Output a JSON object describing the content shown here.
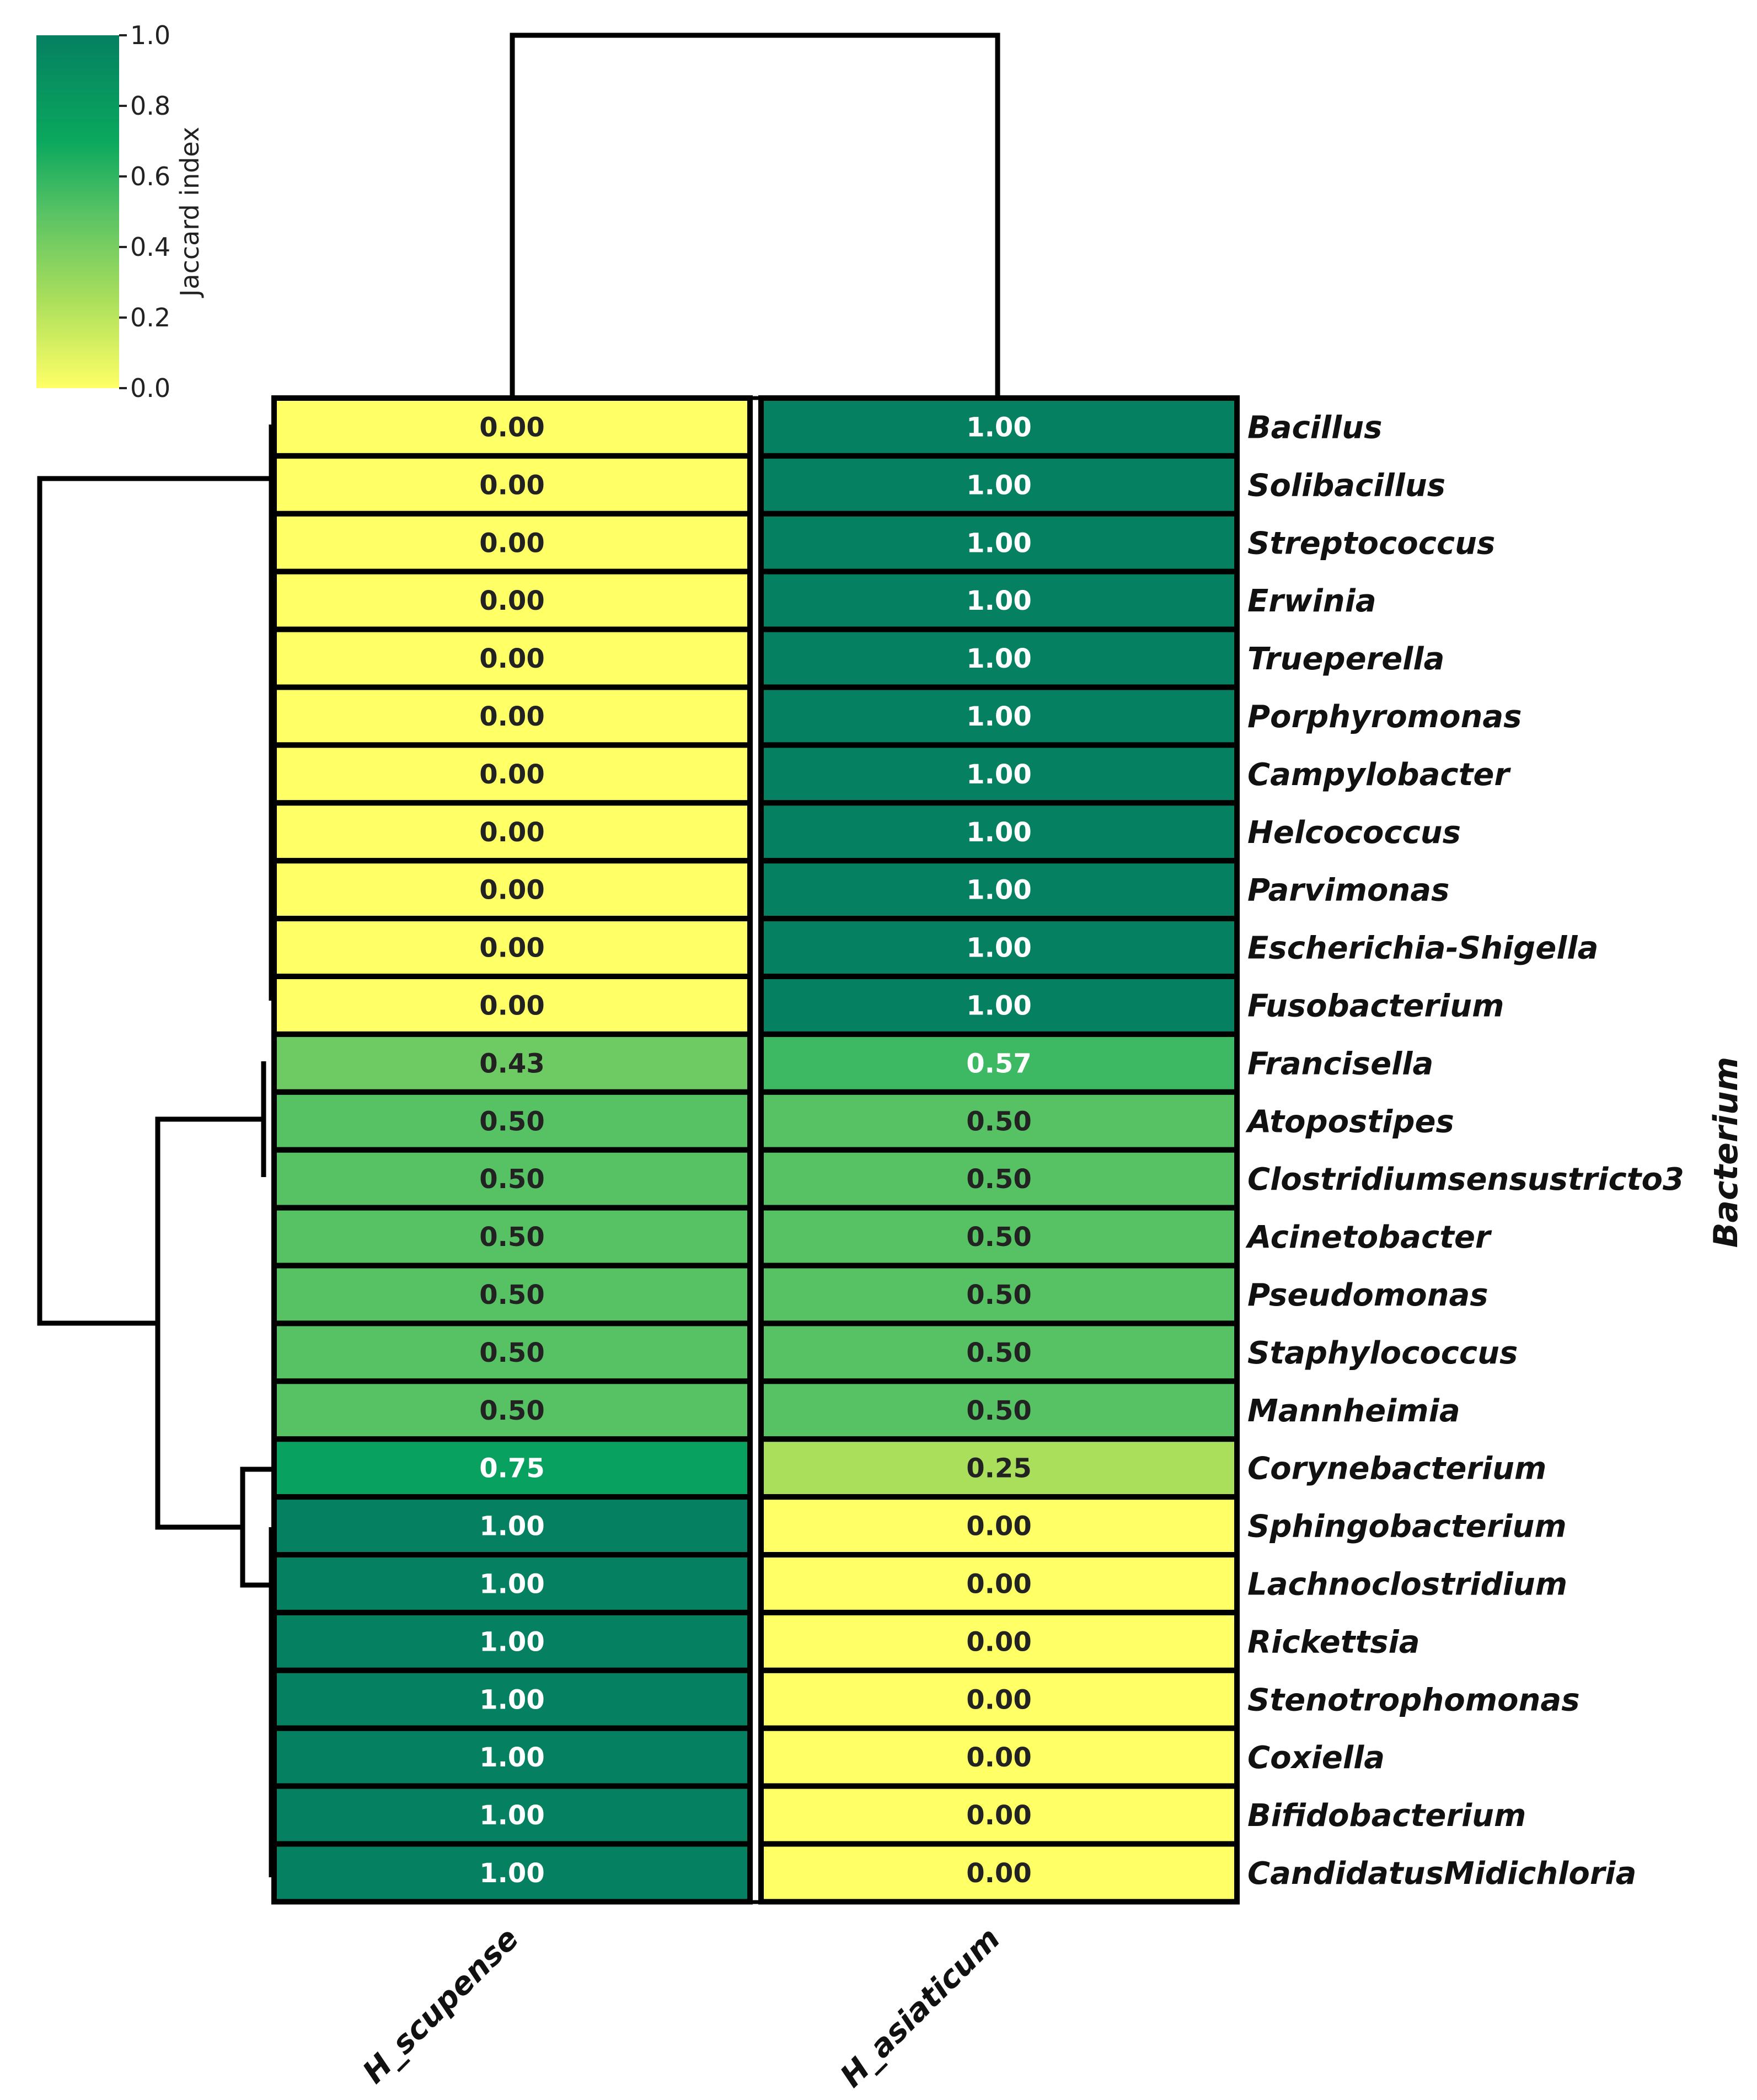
{
  "chart_data": {
    "type": "heatmap",
    "title": "",
    "columns": [
      "H_scupense",
      "H_asiaticum"
    ],
    "rows": [
      "Bacillus",
      "Solibacillus",
      "Streptococcus",
      "Erwinia",
      "Trueperella",
      "Porphyromonas",
      "Campylobacter",
      "Helcococcus",
      "Parvimonas",
      "Escherichia-Shigella",
      "Fusobacterium",
      "Francisella",
      "Atopostipes",
      "Clostridiumsensustricto3",
      "Acinetobacter",
      "Pseudomonas",
      "Staphylococcus",
      "Mannheimia",
      "Corynebacterium",
      "Sphingobacterium",
      "Lachnoclostridium",
      "Rickettsia",
      "Stenotrophomonas",
      "Coxiella",
      "Bifidobacterium",
      "CandidatusMidichloria"
    ],
    "values": [
      [
        0.0,
        1.0
      ],
      [
        0.0,
        1.0
      ],
      [
        0.0,
        1.0
      ],
      [
        0.0,
        1.0
      ],
      [
        0.0,
        1.0
      ],
      [
        0.0,
        1.0
      ],
      [
        0.0,
        1.0
      ],
      [
        0.0,
        1.0
      ],
      [
        0.0,
        1.0
      ],
      [
        0.0,
        1.0
      ],
      [
        0.0,
        1.0
      ],
      [
        0.43,
        0.57
      ],
      [
        0.5,
        0.5
      ],
      [
        0.5,
        0.5
      ],
      [
        0.5,
        0.5
      ],
      [
        0.5,
        0.5
      ],
      [
        0.5,
        0.5
      ],
      [
        0.5,
        0.5
      ],
      [
        0.75,
        0.25
      ],
      [
        1.0,
        0.0
      ],
      [
        1.0,
        0.0
      ],
      [
        1.0,
        0.0
      ],
      [
        1.0,
        0.0
      ],
      [
        1.0,
        0.0
      ],
      [
        1.0,
        0.0
      ],
      [
        1.0,
        0.0
      ]
    ],
    "cell_labels": [
      [
        "0.00",
        "1.00"
      ],
      [
        "0.00",
        "1.00"
      ],
      [
        "0.00",
        "1.00"
      ],
      [
        "0.00",
        "1.00"
      ],
      [
        "0.00",
        "1.00"
      ],
      [
        "0.00",
        "1.00"
      ],
      [
        "0.00",
        "1.00"
      ],
      [
        "0.00",
        "1.00"
      ],
      [
        "0.00",
        "1.00"
      ],
      [
        "0.00",
        "1.00"
      ],
      [
        "0.00",
        "1.00"
      ],
      [
        "0.43",
        "0.57"
      ],
      [
        "0.50",
        "0.50"
      ],
      [
        "0.50",
        "0.50"
      ],
      [
        "0.50",
        "0.50"
      ],
      [
        "0.50",
        "0.50"
      ],
      [
        "0.50",
        "0.50"
      ],
      [
        "0.50",
        "0.50"
      ],
      [
        "0.75",
        "0.25"
      ],
      [
        "1.00",
        "0.00"
      ],
      [
        "1.00",
        "0.00"
      ],
      [
        "1.00",
        "0.00"
      ],
      [
        "1.00",
        "0.00"
      ],
      [
        "1.00",
        "0.00"
      ],
      [
        "1.00",
        "0.00"
      ],
      [
        "1.00",
        "0.00"
      ]
    ],
    "ylabel": "Bacterium",
    "xlabel": "",
    "colorbar": {
      "label": "Jaccard index",
      "range": [
        0.0,
        1.0
      ],
      "ticks": [
        "0.0",
        "0.2",
        "0.4",
        "0.6",
        "0.8",
        "1.0"
      ],
      "tick_values": [
        0.0,
        0.2,
        0.4,
        0.6,
        0.8,
        1.0
      ],
      "colors": [
        "#ffff66",
        "#aadf5c",
        "#57c264",
        "#0aa85e",
        "#058061"
      ]
    },
    "dendrogram": {
      "columns": "H_scupense and H_asiaticum joined at root",
      "row_clusters": [
        "Bacillus … Fusobacterium",
        "Francisella … Mannheimia",
        "Corynebacterium … CandidatusMidichloria"
      ]
    }
  }
}
